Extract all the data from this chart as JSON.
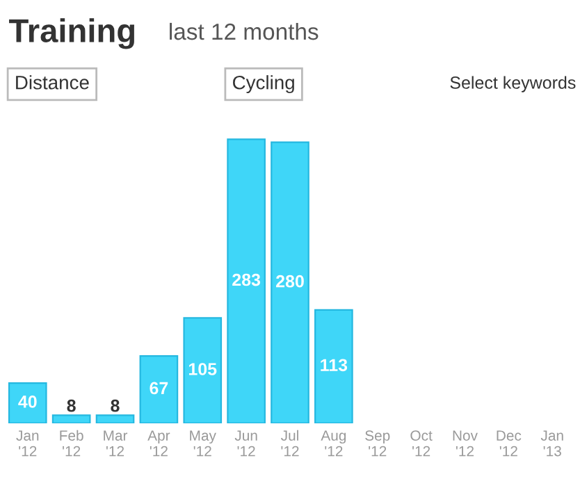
{
  "chart_data": {
    "type": "bar",
    "title": "Training",
    "subtitle": "last 12 months",
    "annotations": [
      "Distance",
      "Cycling",
      "Select keywords"
    ],
    "categories": [
      "Jan\n'12",
      "Feb\n'12",
      "Mar\n'12",
      "Apr\n'12",
      "May\n'12",
      "Jun\n'12",
      "Jul\n'12",
      "Aug\n'12",
      "Sep\n'12",
      "Oct\n'12",
      "Nov\n'12",
      "Dec\n'12",
      "Jan\n'13"
    ],
    "values": [
      40,
      8,
      8,
      67,
      105,
      283,
      280,
      113,
      null,
      null,
      null,
      null,
      null
    ],
    "color": "#3fd6f8",
    "data_labels": true
  }
}
